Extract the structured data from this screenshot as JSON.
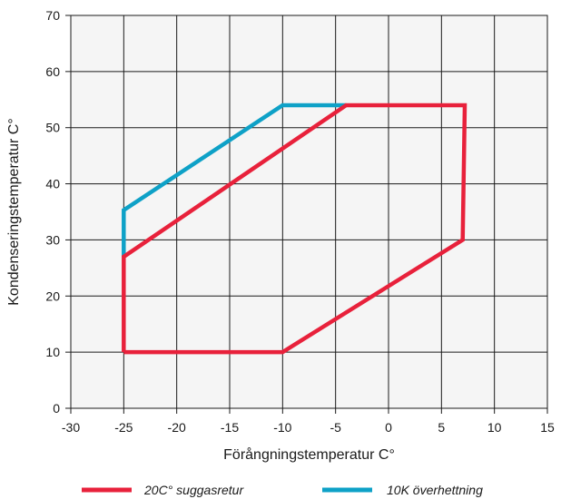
{
  "chart_data": {
    "type": "line",
    "title": "",
    "xlabel": "Förångningstemperatur C°",
    "ylabel": "Kondenseringstemperatur C°",
    "xlim": [
      -30,
      15
    ],
    "ylim": [
      0,
      70
    ],
    "x_ticks": [
      -30,
      -25,
      -20,
      -15,
      -10,
      -5,
      0,
      5,
      10,
      15
    ],
    "y_ticks": [
      0,
      10,
      20,
      30,
      40,
      50,
      60,
      70
    ],
    "x_tick_labels": [
      "-30",
      "-25",
      "-20",
      "-15",
      "-10",
      "-5",
      "0",
      "5",
      "10",
      "15"
    ],
    "y_tick_labels": [
      "0",
      "10",
      "20",
      "30",
      "40",
      "50",
      "60",
      "70"
    ],
    "grid": true,
    "legend_position": "bottom",
    "series": [
      {
        "name": "20C° suggasretur",
        "color": "#e8213b",
        "points": [
          [
            -25,
            10
          ],
          [
            -10,
            10
          ],
          [
            7,
            30
          ],
          [
            7.2,
            54
          ],
          [
            -4,
            54
          ],
          [
            -25,
            27
          ],
          [
            -25,
            10
          ]
        ]
      },
      {
        "name": "10K överhettning",
        "color": "#0ea1c7",
        "points": [
          [
            -25,
            27
          ],
          [
            -25,
            35.3
          ],
          [
            -10,
            54
          ],
          [
            -4,
            54
          ]
        ]
      }
    ]
  }
}
